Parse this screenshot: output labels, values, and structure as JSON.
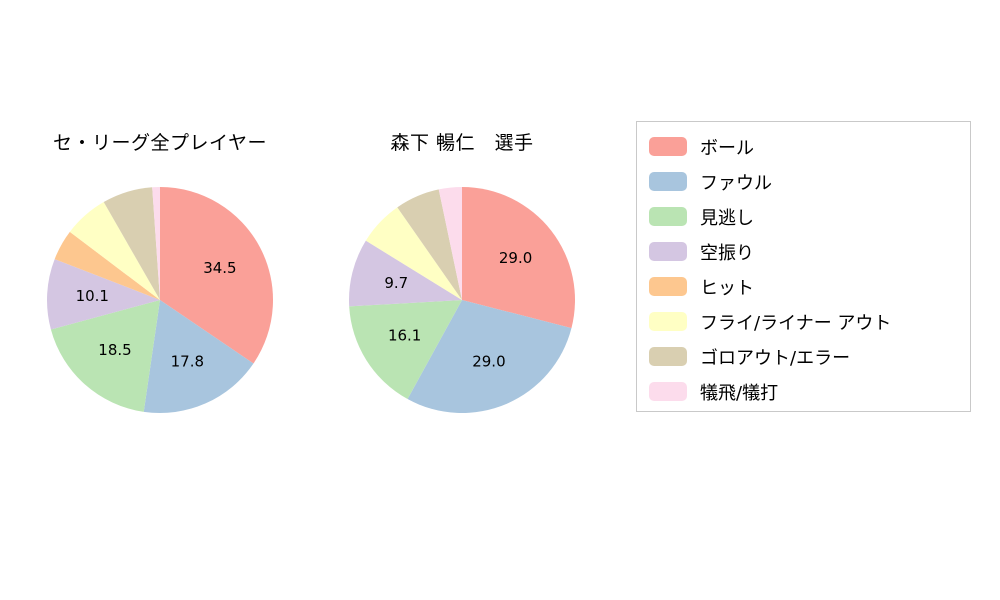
{
  "chart_data": [
    {
      "type": "pie",
      "title": "セ・リーグ全プレイヤー",
      "categories": [
        "ボール",
        "ファウル",
        "見逃し",
        "空振り",
        "ヒット",
        "フライ/ライナー アウト",
        "ゴロアウト/エラー",
        "犠飛/犠打"
      ],
      "values": [
        34.5,
        17.8,
        18.5,
        10.1,
        4.4,
        6.4,
        7.2,
        1.1
      ],
      "slice_labels": [
        "34.5",
        "17.8",
        "18.5",
        "10.1",
        null,
        null,
        null,
        null
      ],
      "start_angle": "top",
      "direction": "clockwise",
      "label_radius_frac": 0.6,
      "legend_position": "right-box"
    },
    {
      "type": "pie",
      "title": "森下 暢仁　選手",
      "categories": [
        "ボール",
        "ファウル",
        "見逃し",
        "空振り",
        "ヒット",
        "フライ/ライナー アウト",
        "ゴロアウト/エラー",
        "犠飛/犠打"
      ],
      "values": [
        29.0,
        29.0,
        16.1,
        9.7,
        0.0,
        6.5,
        6.4,
        3.3
      ],
      "slice_labels": [
        "29.0",
        "29.0",
        "16.1",
        "9.7",
        null,
        null,
        null,
        null
      ],
      "start_angle": "top",
      "direction": "clockwise",
      "label_radius_frac": 0.6,
      "legend_position": "right-box"
    }
  ],
  "legend": {
    "items": [
      {
        "label": "ボール",
        "color": "#FAA098"
      },
      {
        "label": "ファウル",
        "color": "#A8C5DE"
      },
      {
        "label": "見逃し",
        "color": "#BAE4B3"
      },
      {
        "label": "空振り",
        "color": "#D4C6E2"
      },
      {
        "label": "ヒット",
        "color": "#FDC78F"
      },
      {
        "label": "フライ/ライナー アウト",
        "color": "#FFFFC4"
      },
      {
        "label": "ゴロアウト/エラー",
        "color": "#D9CFB1"
      },
      {
        "label": "犠飛/犠打",
        "color": "#FCDCEC"
      }
    ]
  },
  "style": {
    "slice_label_color": "#000000",
    "slice_label_font_size": 15
  }
}
